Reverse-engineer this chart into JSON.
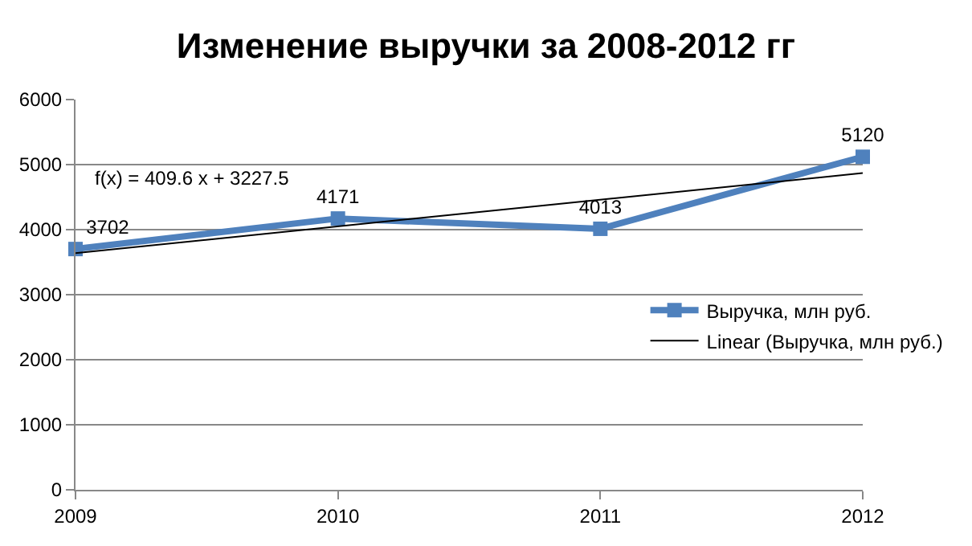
{
  "chart_data": {
    "type": "line",
    "title": "Изменение выручки за 2008-2012 гг",
    "xlim": [
      2009,
      2012
    ],
    "xticks": [
      2009,
      2010,
      2011,
      2012
    ],
    "ylim": [
      0,
      6000
    ],
    "yticks": [
      0,
      1000,
      2000,
      3000,
      4000,
      5000,
      6000
    ],
    "grid": "y",
    "legend": "right",
    "annotations": [
      "f(x) = 409.6 x + 3227.5"
    ],
    "series": [
      {
        "name": "Выручка, млн руб.",
        "color": "#4f81bd",
        "x": [
          2009,
          2010,
          2011,
          2012
        ],
        "values": [
          3702,
          4171,
          4013,
          5120
        ],
        "value_labels": [
          "3702",
          "4171",
          "4013",
          "5120"
        ],
        "marker": "square",
        "line_style": "solid"
      },
      {
        "name": "Linear (Выручка, млн руб.)",
        "color": "#000000",
        "type": "line",
        "x": [
          2009,
          2012
        ],
        "values": [
          3640,
          4870
        ],
        "marker": "none",
        "line_style": "solid"
      }
    ]
  }
}
